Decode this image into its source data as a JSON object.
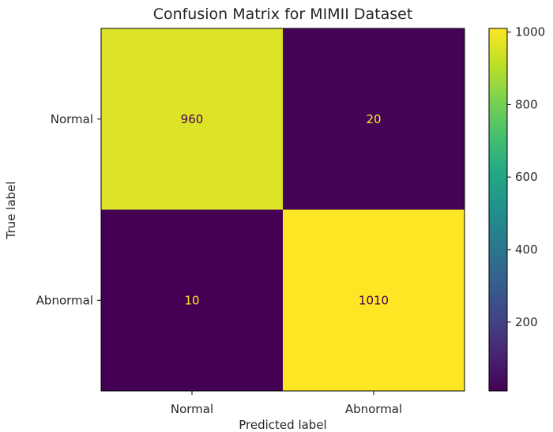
{
  "chart_data": {
    "type": "heatmap",
    "title": "Confusion Matrix for MIMII Dataset",
    "xlabel": "Predicted label",
    "ylabel": "True label",
    "x_categories": [
      "Normal",
      "Abnormal"
    ],
    "y_categories": [
      "Normal",
      "Abnormal"
    ],
    "values": [
      [
        960,
        20
      ],
      [
        10,
        1010
      ]
    ],
    "value_labels": [
      [
        "960",
        "20"
      ],
      [
        "10",
        "1010"
      ]
    ],
    "colormap": "viridis",
    "colorbar": {
      "range": [
        10,
        1010
      ],
      "ticks": [
        200,
        400,
        600,
        800,
        1000
      ],
      "tick_labels": [
        "200",
        "400",
        "600",
        "800",
        "1000"
      ]
    },
    "colors": {
      "low": "#440154",
      "high": "#fde725",
      "text_on_dark": "#fde725",
      "text_on_light": "#440154"
    }
  }
}
